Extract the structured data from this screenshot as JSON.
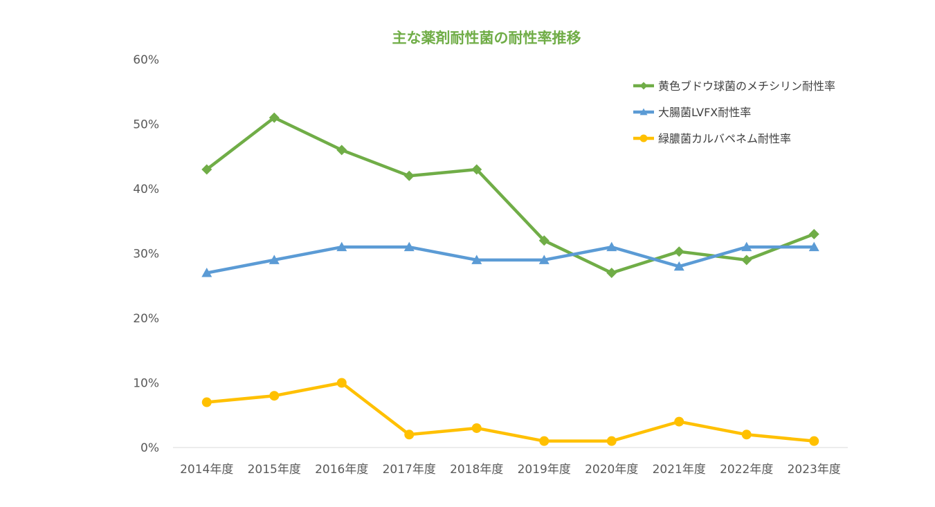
{
  "chart_data": {
    "type": "line",
    "title": "主な薬剤耐性菌の耐性率推移",
    "title_color": "#70AD47",
    "categories": [
      "2014年度",
      "2015年度",
      "2016年度",
      "2017年度",
      "2018年度",
      "2019年度",
      "2020年度",
      "2021年度",
      "2022年度",
      "2023年度"
    ],
    "y_ticks": [
      "0%",
      "10%",
      "20%",
      "30%",
      "40%",
      "50%",
      "60%"
    ],
    "ylim": [
      0,
      60
    ],
    "grid": false,
    "legend_position": "top-right",
    "series": [
      {
        "name": "黄色ブドウ球菌のメチシリン耐性率",
        "color": "#70AD47",
        "marker": "diamond",
        "values": [
          43,
          51,
          46,
          42,
          43,
          32,
          27,
          30.3,
          29,
          33
        ]
      },
      {
        "name": "大腸菌LVFX耐性率",
        "color": "#5B9BD5",
        "marker": "triangle",
        "values": [
          27,
          29,
          31,
          31,
          29,
          29,
          31,
          28,
          31,
          31
        ]
      },
      {
        "name": "緑膿菌カルバペネム耐性率",
        "color": "#FFC000",
        "marker": "circle",
        "values": [
          7,
          8,
          10,
          2,
          3,
          1,
          1,
          4,
          2,
          1
        ]
      }
    ]
  }
}
